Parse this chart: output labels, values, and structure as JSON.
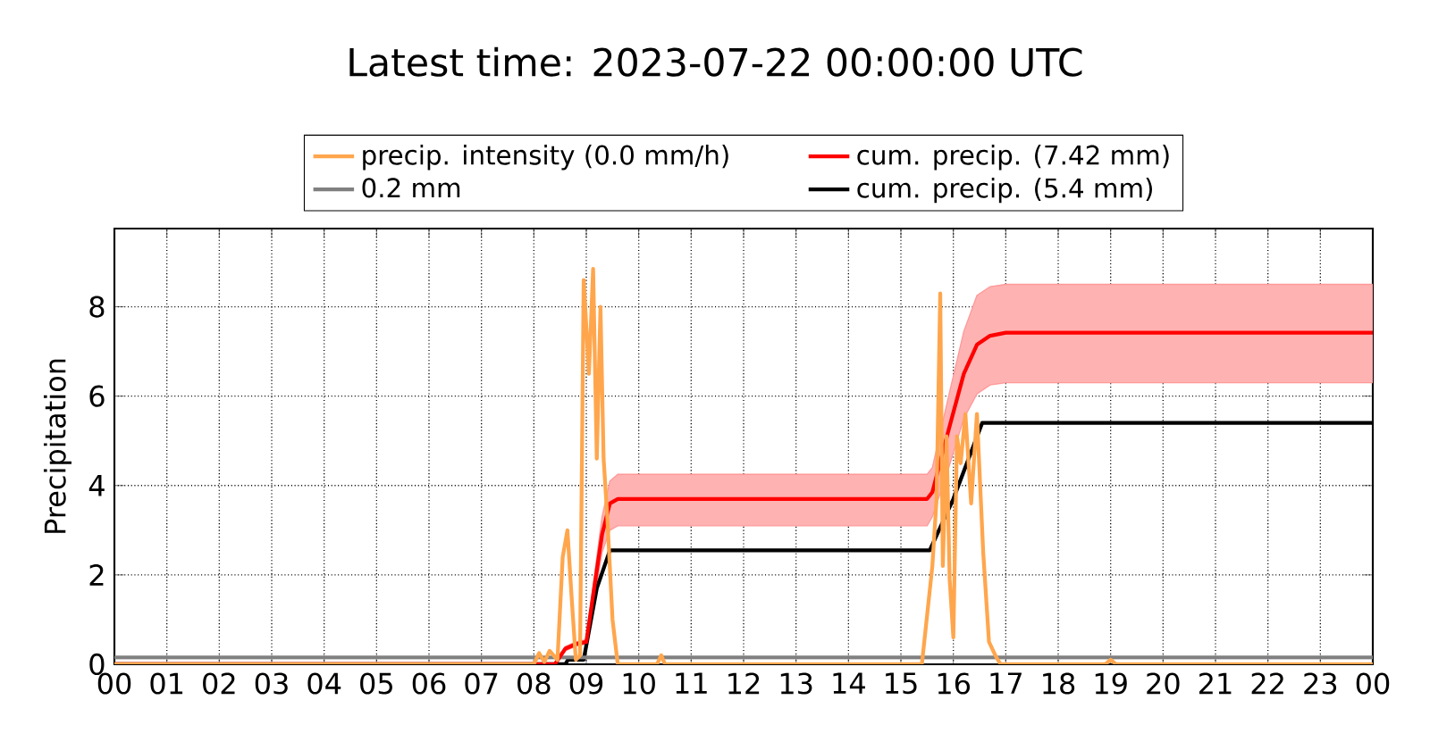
{
  "chart_data": {
    "type": "line",
    "title": "Latest time: 2023-07-22 00:00:00 UTC",
    "ylabel": "Precipitation",
    "xlim": [
      0,
      24
    ],
    "ylim": [
      0,
      9.75
    ],
    "xticks": [
      {
        "value": 0,
        "label": "00"
      },
      {
        "value": 1,
        "label": "01"
      },
      {
        "value": 2,
        "label": "02"
      },
      {
        "value": 3,
        "label": "03"
      },
      {
        "value": 4,
        "label": "04"
      },
      {
        "value": 5,
        "label": "05"
      },
      {
        "value": 6,
        "label": "06"
      },
      {
        "value": 7,
        "label": "07"
      },
      {
        "value": 8,
        "label": "08"
      },
      {
        "value": 9,
        "label": "09"
      },
      {
        "value": 10,
        "label": "10"
      },
      {
        "value": 11,
        "label": "11"
      },
      {
        "value": 12,
        "label": "12"
      },
      {
        "value": 13,
        "label": "13"
      },
      {
        "value": 14,
        "label": "14"
      },
      {
        "value": 15,
        "label": "15"
      },
      {
        "value": 16,
        "label": "16"
      },
      {
        "value": 17,
        "label": "17"
      },
      {
        "value": 18,
        "label": "18"
      },
      {
        "value": 19,
        "label": "19"
      },
      {
        "value": 20,
        "label": "20"
      },
      {
        "value": 21,
        "label": "21"
      },
      {
        "value": 22,
        "label": "22"
      },
      {
        "value": 23,
        "label": "23"
      },
      {
        "value": 24,
        "label": "00"
      }
    ],
    "yticks": [
      0,
      2,
      4,
      6,
      8
    ],
    "grid": true,
    "legend": "top",
    "series": [
      {
        "name": "precip. intensity (0.0 mm/h)",
        "color": "#ffa64d",
        "x": [
          0,
          8.0,
          8.1,
          8.2,
          8.3,
          8.45,
          8.55,
          8.64,
          8.72,
          8.8,
          8.88,
          8.95,
          9.05,
          9.13,
          9.2,
          9.27,
          9.33,
          9.4,
          9.5,
          9.6,
          10.35,
          10.43,
          10.5,
          15.4,
          15.6,
          15.68,
          15.75,
          15.8,
          15.87,
          15.93,
          16.0,
          16.07,
          16.14,
          16.23,
          16.34,
          16.45,
          16.57,
          16.68,
          16.8,
          16.9,
          18.9,
          19.0,
          19.1,
          24
        ],
        "values": [
          0,
          0,
          0.25,
          0.05,
          0.3,
          0.1,
          2.4,
          3.0,
          1.5,
          0.1,
          0.2,
          8.6,
          6.5,
          8.85,
          4.6,
          8.0,
          4.6,
          3.3,
          1.0,
          0,
          0,
          0.2,
          0,
          0,
          2.2,
          3.7,
          8.3,
          2.2,
          5.1,
          1.9,
          0.6,
          5.1,
          4.5,
          5.6,
          3.6,
          5.6,
          2.5,
          0.5,
          0.2,
          0,
          0,
          0.1,
          0,
          0
        ]
      },
      {
        "name": "cum. precip. (7.42 mm)",
        "color": "#ff0000",
        "x": [
          0,
          8.4,
          8.6,
          8.8,
          9.0,
          9.1,
          9.3,
          9.45,
          9.6,
          15.5,
          15.6,
          15.9,
          16.2,
          16.45,
          16.7,
          17.0,
          24
        ],
        "values": [
          0,
          0,
          0.35,
          0.45,
          0.5,
          1.3,
          2.9,
          3.6,
          3.7,
          3.7,
          3.85,
          5.2,
          6.5,
          7.15,
          7.35,
          7.42,
          7.42
        ],
        "lower": [
          0,
          0,
          0.3,
          0.4,
          0.45,
          1.1,
          2.5,
          3.0,
          3.1,
          3.1,
          3.3,
          4.35,
          5.5,
          6.05,
          6.25,
          6.3,
          6.3
        ],
        "upper": [
          0,
          0,
          0.4,
          0.5,
          0.55,
          1.5,
          3.3,
          4.1,
          4.25,
          4.25,
          4.4,
          5.95,
          7.45,
          8.25,
          8.45,
          8.5,
          8.5
        ]
      },
      {
        "name": "0.2 mm",
        "color": "#808080",
        "x": [
          0,
          24
        ],
        "values": [
          0.15,
          0.15
        ]
      },
      {
        "name": "cum. precip. (5.4 mm)",
        "color": "#000000",
        "x": [
          0,
          8.6,
          8.65,
          8.95,
          9.2,
          9.45,
          15.55,
          16.0,
          16.55,
          24
        ],
        "values": [
          0,
          0,
          0.1,
          0.1,
          1.7,
          2.55,
          2.55,
          3.7,
          5.4,
          5.4
        ]
      }
    ]
  }
}
